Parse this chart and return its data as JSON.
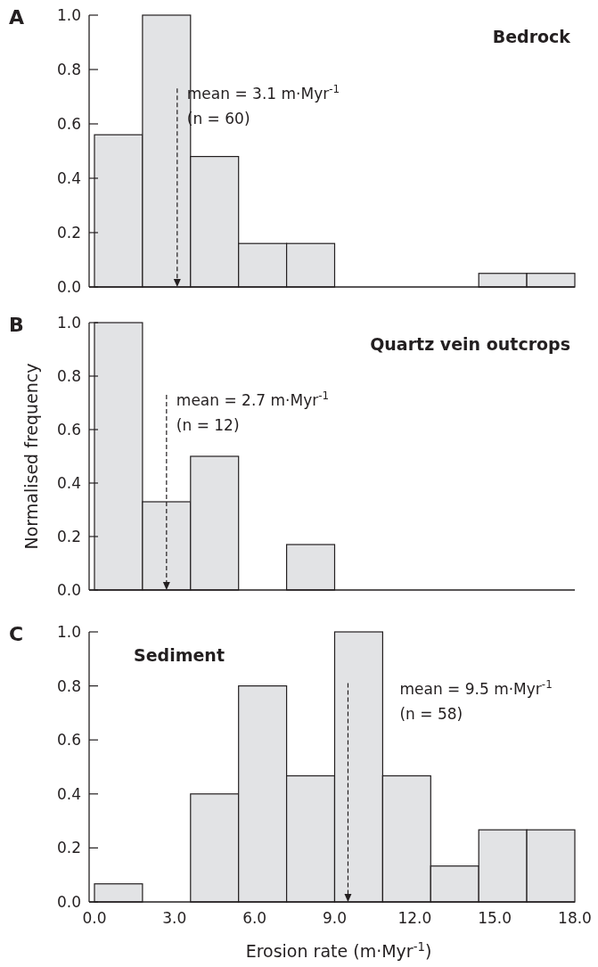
{
  "chart_data": [
    {
      "type": "histogram",
      "title": "Bedrock",
      "annotations": [
        "A",
        "(n = 60)"
      ],
      "bins": [
        0,
        1.8,
        3.6,
        5.4,
        7.2,
        9.0,
        10.8,
        12.6,
        14.4,
        16.2,
        18.0
      ],
      "values": [
        0.56,
        1.0,
        0.48,
        0.16,
        0.16,
        0,
        0,
        0,
        0.05,
        0.05
      ],
      "color": "#e2e3e5",
      "xlim": [
        -0.2,
        18
      ],
      "ylim": [
        0,
        1
      ],
      "yticks": [
        {
          "value": 0,
          "label": "0.0"
        },
        {
          "value": 0.2,
          "label": "0.2"
        },
        {
          "value": 0.4,
          "label": "0.4"
        },
        {
          "value": 0.6,
          "label": "0.6"
        },
        {
          "value": 0.8,
          "label": "0.8"
        },
        {
          "value": 1,
          "label": "1.0"
        }
      ],
      "tick_labels": "y",
      "ref_lines": [
        {
          "axis": "x",
          "value": 3.1,
          "label": "mean = 3.1 m·Myr$^{-1}$",
          "line_style": "dashed"
        }
      ]
    },
    {
      "type": "histogram",
      "title": "Quartz vein outcrops",
      "ylabel": "Normalised frequency",
      "annotations": [
        "B",
        "(n = 12)"
      ],
      "bins": [
        0,
        1.8,
        3.6,
        5.4,
        7.2,
        9.0,
        10.8,
        12.6,
        14.4,
        16.2,
        18.0
      ],
      "values": [
        1.0,
        0.33,
        0.5,
        0,
        0.17,
        0,
        0,
        0,
        0,
        0
      ],
      "color": "#e2e3e5",
      "xlim": [
        -0.2,
        18
      ],
      "ylim": [
        0,
        1
      ],
      "yticks": [
        {
          "value": 0,
          "label": "0.0"
        },
        {
          "value": 0.2,
          "label": "0.2"
        },
        {
          "value": 0.4,
          "label": "0.4"
        },
        {
          "value": 0.6,
          "label": "0.6"
        },
        {
          "value": 0.8,
          "label": "0.8"
        },
        {
          "value": 1,
          "label": "1.0"
        }
      ],
      "tick_labels": "y",
      "ref_lines": [
        {
          "axis": "x",
          "value": 2.7,
          "label": "mean = 2.7 m·Myr$^{-1}$",
          "line_style": "dashed"
        }
      ]
    },
    {
      "type": "histogram",
      "title": "Sediment",
      "xlabel": "Erosion rate (m·Myr$^{-1}$)",
      "annotations": [
        "C",
        "(n = 58)"
      ],
      "bins": [
        0,
        1.8,
        3.6,
        5.4,
        7.2,
        9.0,
        10.8,
        12.6,
        14.4,
        16.2,
        18.0
      ],
      "values": [
        0.067,
        0,
        0.4,
        0.8,
        0.467,
        1.0,
        0.467,
        0.133,
        0.267,
        0.267
      ],
      "color": "#e2e3e5",
      "xlim": [
        -0.2,
        18
      ],
      "ylim": [
        0,
        1
      ],
      "yticks": [
        {
          "value": 0,
          "label": "0.0"
        },
        {
          "value": 0.2,
          "label": "0.2"
        },
        {
          "value": 0.4,
          "label": "0.4"
        },
        {
          "value": 0.6,
          "label": "0.6"
        },
        {
          "value": 0.8,
          "label": "0.8"
        },
        {
          "value": 1,
          "label": "1.0"
        }
      ],
      "xticks": [
        {
          "value": 0,
          "label": "0.0"
        },
        {
          "value": 3,
          "label": "3.0"
        },
        {
          "value": 6,
          "label": "6.0"
        },
        {
          "value": 9,
          "label": "9.0"
        },
        {
          "value": 12,
          "label": "12.0"
        },
        {
          "value": 15,
          "label": "15.0"
        },
        {
          "value": 18,
          "label": "18.0"
        }
      ],
      "ref_lines": [
        {
          "axis": "x",
          "value": 9.5,
          "label": "mean = 9.5 m·Myr$^{-1}$",
          "line_style": "dashed"
        }
      ]
    }
  ]
}
